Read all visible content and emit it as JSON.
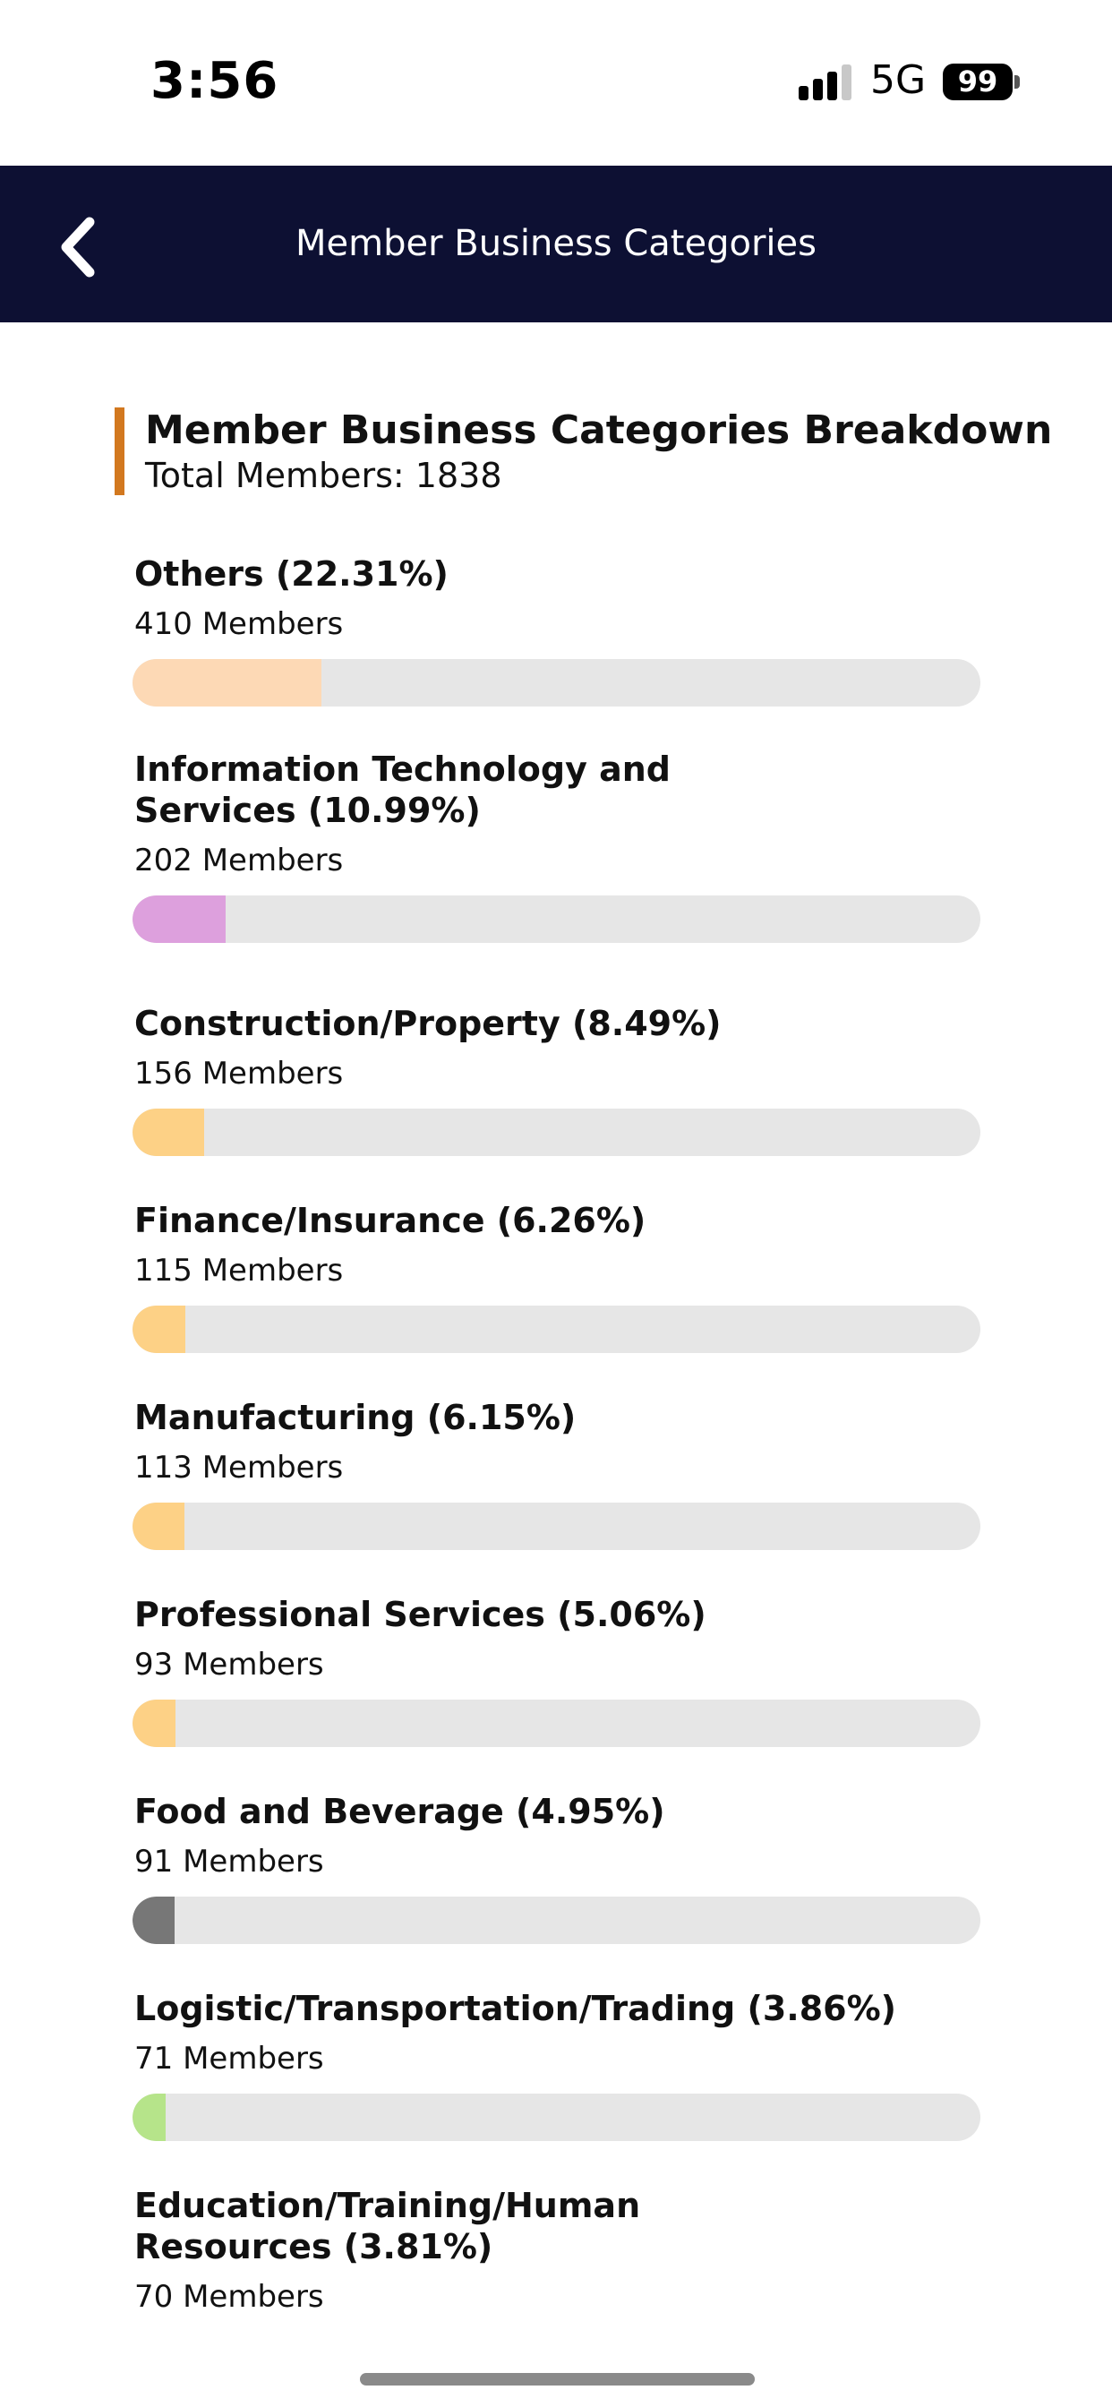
{
  "status_bar": {
    "time": "3:56",
    "network": "5G",
    "battery": "99"
  },
  "header": {
    "title": "Member Business Categories"
  },
  "breakdown": {
    "title": "Member Business Categories Breakdown",
    "total_label": "Total Members: 1838"
  },
  "categories": [
    {
      "name": "Others (22.31%)",
      "count": "410 Members",
      "percent": 22.31,
      "color": "#fdd9b5"
    },
    {
      "name": "Information Technology and Services (10.99%)",
      "count": "202 Members",
      "percent": 10.99,
      "color": "#dda0dd"
    },
    {
      "name": "Construction/Property (8.49%)",
      "count": "156 Members",
      "percent": 8.49,
      "color": "#fdd186"
    },
    {
      "name": "Finance/Insurance (6.26%)",
      "count": "115 Members",
      "percent": 6.26,
      "color": "#fdd186"
    },
    {
      "name": "Manufacturing (6.15%)",
      "count": "113 Members",
      "percent": 6.15,
      "color": "#fdd186"
    },
    {
      "name": "Professional Services (5.06%)",
      "count": "93 Members",
      "percent": 5.06,
      "color": "#fdd186"
    },
    {
      "name": "Food and Beverage (4.95%)",
      "count": "91 Members",
      "percent": 4.95,
      "color": "#777777"
    },
    {
      "name": "Logistic/Transportation/Trading (3.86%)",
      "count": "71 Members",
      "percent": 3.86,
      "color": "#b6e48a"
    },
    {
      "name": "Education/Training/Human Resources (3.81%)",
      "count": "70 Members",
      "percent": 3.81,
      "color": "#fdd186"
    }
  ]
}
